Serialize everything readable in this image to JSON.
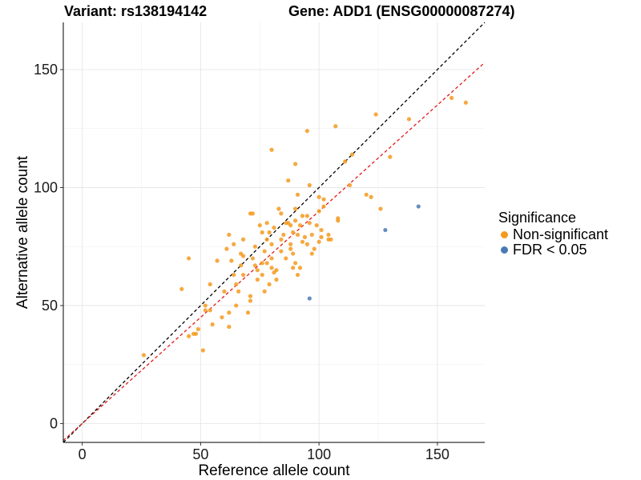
{
  "chart_data": {
    "type": "scatter",
    "title_left": "Variant: rs138194142",
    "title_right": "Gene: ADD1 (ENSG00000087274)",
    "xlabel": "Reference allele count",
    "ylabel": "Alternative allele count",
    "xlim": [
      -8,
      170
    ],
    "ylim": [
      -8,
      170
    ],
    "xticks": [
      0,
      50,
      100,
      150
    ],
    "yticks": [
      0,
      50,
      100,
      150
    ],
    "grid": true,
    "legend": {
      "title": "Significance",
      "placement": "right",
      "items": [
        {
          "label": "Non-significant",
          "color": "#f59a1f"
        },
        {
          "label": "FDR < 0.05",
          "color": "#4a7ab5"
        }
      ]
    },
    "reference_lines": [
      {
        "slope": 1.0,
        "intercept": 0,
        "color": "#000000",
        "style": "dashed"
      },
      {
        "slope": 0.9,
        "intercept": 0,
        "color": "#e41a1c",
        "style": "dashed"
      }
    ],
    "series": [
      {
        "name": "Non-significant",
        "color": "#f59a1f",
        "points": [
          [
            26,
            29
          ],
          [
            42,
            57
          ],
          [
            45,
            37
          ],
          [
            45,
            70
          ],
          [
            47,
            38
          ],
          [
            48,
            38
          ],
          [
            49,
            40
          ],
          [
            51,
            31
          ],
          [
            52,
            48
          ],
          [
            52,
            50
          ],
          [
            54,
            59
          ],
          [
            54,
            48
          ],
          [
            55,
            42
          ],
          [
            57,
            69
          ],
          [
            59,
            45
          ],
          [
            60,
            56
          ],
          [
            61,
            74
          ],
          [
            62,
            80
          ],
          [
            62,
            47
          ],
          [
            62,
            41
          ],
          [
            63,
            69
          ],
          [
            64,
            76
          ],
          [
            64,
            63
          ],
          [
            65,
            59
          ],
          [
            65,
            50
          ],
          [
            66,
            56
          ],
          [
            67,
            72
          ],
          [
            67,
            67
          ],
          [
            68,
            71
          ],
          [
            68,
            78
          ],
          [
            68,
            63
          ],
          [
            70,
            47
          ],
          [
            71,
            54
          ],
          [
            71,
            52
          ],
          [
            71,
            89
          ],
          [
            72,
            89
          ],
          [
            72,
            70
          ],
          [
            73,
            75
          ],
          [
            73,
            67
          ],
          [
            74,
            61
          ],
          [
            74,
            65
          ],
          [
            75,
            84
          ],
          [
            76,
            81
          ],
          [
            76,
            63
          ],
          [
            76,
            68
          ],
          [
            77,
            73
          ],
          [
            77,
            56
          ],
          [
            78,
            78
          ],
          [
            78,
            85
          ],
          [
            78,
            68
          ],
          [
            79,
            59
          ],
          [
            79,
            81
          ],
          [
            80,
            116
          ],
          [
            80,
            76
          ],
          [
            80,
            70
          ],
          [
            80,
            66
          ],
          [
            81,
            83
          ],
          [
            81,
            64
          ],
          [
            82,
            65
          ],
          [
            82,
            61
          ],
          [
            83,
            91
          ],
          [
            84,
            89
          ],
          [
            84,
            73
          ],
          [
            84,
            78
          ],
          [
            85,
            80
          ],
          [
            86,
            85
          ],
          [
            86,
            70
          ],
          [
            87,
            103
          ],
          [
            87,
            85
          ],
          [
            88,
            84
          ],
          [
            88,
            76
          ],
          [
            88,
            74
          ],
          [
            89,
            72
          ],
          [
            89,
            81
          ],
          [
            89,
            66
          ],
          [
            90,
            110
          ],
          [
            90,
            91
          ],
          [
            90,
            86
          ],
          [
            90,
            68
          ],
          [
            91,
            97
          ],
          [
            91,
            63
          ],
          [
            91,
            80
          ],
          [
            92,
            84
          ],
          [
            92,
            66
          ],
          [
            93,
            88
          ],
          [
            93,
            77
          ],
          [
            94,
            79
          ],
          [
            95,
            124
          ],
          [
            95,
            76
          ],
          [
            95,
            88
          ],
          [
            96,
            101
          ],
          [
            96,
            85
          ],
          [
            97,
            72
          ],
          [
            97,
            80
          ],
          [
            98,
            74
          ],
          [
            99,
            84
          ],
          [
            100,
            96
          ],
          [
            100,
            77
          ],
          [
            100,
            90
          ],
          [
            101,
            79
          ],
          [
            101,
            82
          ],
          [
            102,
            92
          ],
          [
            102,
            95
          ],
          [
            104,
            78
          ],
          [
            104,
            80
          ],
          [
            105,
            78
          ],
          [
            107,
            126
          ],
          [
            108,
            86
          ],
          [
            108,
            87
          ],
          [
            111,
            111
          ],
          [
            113,
            101
          ],
          [
            114,
            114
          ],
          [
            120,
            97
          ],
          [
            122,
            96
          ],
          [
            124,
            131
          ],
          [
            126,
            91
          ],
          [
            130,
            113
          ],
          [
            138,
            129
          ],
          [
            156,
            138
          ],
          [
            162,
            136
          ]
        ]
      },
      {
        "name": "FDR < 0.05",
        "color": "#4a7ab5",
        "points": [
          [
            96,
            53
          ],
          [
            128,
            82
          ],
          [
            142,
            92
          ]
        ]
      }
    ]
  }
}
